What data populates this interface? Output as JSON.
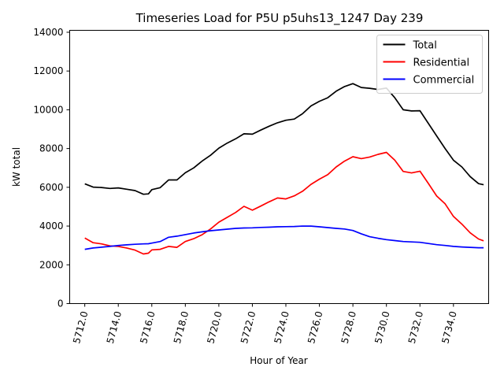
{
  "chart_data": {
    "type": "line",
    "title": "Timeseries Load for P5U p5uhs13_1247  Day 239",
    "xlabel": "Hour of Year",
    "ylabel": "kW total",
    "xlim": [
      5711.1,
      5736.1
    ],
    "ylim": [
      0,
      14100
    ],
    "grid": false,
    "legend_position": "top-right",
    "x_ticks": [
      5712,
      5714,
      5716,
      5718,
      5720,
      5722,
      5724,
      5726,
      5728,
      5730,
      5732,
      5734
    ],
    "x_tick_labels": [
      "5712.0",
      "5714.0",
      "5716.0",
      "5718.0",
      "5720.0",
      "5722.0",
      "5724.0",
      "5726.0",
      "5728.0",
      "5730.0",
      "5732.0",
      "5734.0"
    ],
    "y_ticks": [
      0,
      2000,
      4000,
      6000,
      8000,
      10000,
      12000,
      14000
    ],
    "y_tick_labels": [
      "0",
      "2000",
      "4000",
      "6000",
      "8000",
      "10000",
      "12000",
      "14000"
    ],
    "series": [
      {
        "name": "Total",
        "color": "#000000",
        "points": [
          [
            5712.0,
            6180
          ],
          [
            5712.5,
            6010
          ],
          [
            5713.0,
            5990
          ],
          [
            5713.5,
            5940
          ],
          [
            5714.0,
            5970
          ],
          [
            5714.5,
            5900
          ],
          [
            5715.0,
            5830
          ],
          [
            5715.5,
            5640
          ],
          [
            5715.8,
            5660
          ],
          [
            5716.0,
            5880
          ],
          [
            5716.5,
            5980
          ],
          [
            5717.0,
            6380
          ],
          [
            5717.5,
            6380
          ],
          [
            5718.0,
            6750
          ],
          [
            5718.5,
            7000
          ],
          [
            5719.0,
            7350
          ],
          [
            5719.5,
            7650
          ],
          [
            5720.0,
            8020
          ],
          [
            5720.5,
            8280
          ],
          [
            5721.0,
            8500
          ],
          [
            5721.5,
            8760
          ],
          [
            5722.0,
            8740
          ],
          [
            5722.5,
            8950
          ],
          [
            5723.0,
            9150
          ],
          [
            5723.5,
            9330
          ],
          [
            5724.0,
            9460
          ],
          [
            5724.5,
            9520
          ],
          [
            5725.0,
            9800
          ],
          [
            5725.5,
            10200
          ],
          [
            5726.0,
            10440
          ],
          [
            5726.5,
            10620
          ],
          [
            5727.0,
            10960
          ],
          [
            5727.5,
            11200
          ],
          [
            5728.0,
            11350
          ],
          [
            5728.5,
            11150
          ],
          [
            5729.0,
            11110
          ],
          [
            5729.5,
            11050
          ],
          [
            5730.0,
            11120
          ],
          [
            5730.5,
            10620
          ],
          [
            5731.0,
            10000
          ],
          [
            5731.5,
            9940
          ],
          [
            5732.0,
            9950
          ],
          [
            5732.5,
            9300
          ],
          [
            5733.0,
            8650
          ],
          [
            5733.5,
            8000
          ],
          [
            5734.0,
            7400
          ],
          [
            5734.5,
            7050
          ],
          [
            5735.0,
            6550
          ],
          [
            5735.5,
            6190
          ],
          [
            5735.8,
            6130
          ]
        ]
      },
      {
        "name": "Residential",
        "color": "#ff0000",
        "points": [
          [
            5712.0,
            3380
          ],
          [
            5712.5,
            3140
          ],
          [
            5713.0,
            3080
          ],
          [
            5713.5,
            2980
          ],
          [
            5714.0,
            2950
          ],
          [
            5714.5,
            2870
          ],
          [
            5715.0,
            2760
          ],
          [
            5715.5,
            2560
          ],
          [
            5715.8,
            2600
          ],
          [
            5716.0,
            2770
          ],
          [
            5716.5,
            2800
          ],
          [
            5717.0,
            2950
          ],
          [
            5717.5,
            2900
          ],
          [
            5718.0,
            3200
          ],
          [
            5718.5,
            3350
          ],
          [
            5719.0,
            3550
          ],
          [
            5719.5,
            3850
          ],
          [
            5720.0,
            4200
          ],
          [
            5720.5,
            4450
          ],
          [
            5721.0,
            4700
          ],
          [
            5721.5,
            5020
          ],
          [
            5722.0,
            4820
          ],
          [
            5722.5,
            5030
          ],
          [
            5723.0,
            5250
          ],
          [
            5723.5,
            5450
          ],
          [
            5724.0,
            5400
          ],
          [
            5724.5,
            5560
          ],
          [
            5725.0,
            5800
          ],
          [
            5725.5,
            6150
          ],
          [
            5726.0,
            6420
          ],
          [
            5726.5,
            6650
          ],
          [
            5727.0,
            7050
          ],
          [
            5727.5,
            7350
          ],
          [
            5728.0,
            7580
          ],
          [
            5728.5,
            7480
          ],
          [
            5729.0,
            7560
          ],
          [
            5729.5,
            7700
          ],
          [
            5730.0,
            7800
          ],
          [
            5730.5,
            7400
          ],
          [
            5731.0,
            6820
          ],
          [
            5731.5,
            6740
          ],
          [
            5732.0,
            6830
          ],
          [
            5732.5,
            6200
          ],
          [
            5733.0,
            5550
          ],
          [
            5733.5,
            5150
          ],
          [
            5734.0,
            4500
          ],
          [
            5734.5,
            4100
          ],
          [
            5735.0,
            3650
          ],
          [
            5735.5,
            3330
          ],
          [
            5735.8,
            3240
          ]
        ]
      },
      {
        "name": "Commercial",
        "color": "#0000ff",
        "points": [
          [
            5712.0,
            2800
          ],
          [
            5712.5,
            2870
          ],
          [
            5713.0,
            2910
          ],
          [
            5713.5,
            2950
          ],
          [
            5714.0,
            3000
          ],
          [
            5714.5,
            3030
          ],
          [
            5715.0,
            3060
          ],
          [
            5715.5,
            3080
          ],
          [
            5715.8,
            3090
          ],
          [
            5716.0,
            3120
          ],
          [
            5716.5,
            3200
          ],
          [
            5717.0,
            3420
          ],
          [
            5717.5,
            3480
          ],
          [
            5718.0,
            3560
          ],
          [
            5718.5,
            3640
          ],
          [
            5719.0,
            3700
          ],
          [
            5719.5,
            3760
          ],
          [
            5720.0,
            3800
          ],
          [
            5720.5,
            3840
          ],
          [
            5721.0,
            3880
          ],
          [
            5721.5,
            3900
          ],
          [
            5722.0,
            3910
          ],
          [
            5722.5,
            3930
          ],
          [
            5723.0,
            3940
          ],
          [
            5723.5,
            3960
          ],
          [
            5724.0,
            3970
          ],
          [
            5724.5,
            3980
          ],
          [
            5725.0,
            4000
          ],
          [
            5725.5,
            4000
          ],
          [
            5726.0,
            3960
          ],
          [
            5726.5,
            3920
          ],
          [
            5727.0,
            3880
          ],
          [
            5727.5,
            3850
          ],
          [
            5728.0,
            3770
          ],
          [
            5728.5,
            3600
          ],
          [
            5729.0,
            3450
          ],
          [
            5729.5,
            3370
          ],
          [
            5730.0,
            3300
          ],
          [
            5730.5,
            3250
          ],
          [
            5731.0,
            3200
          ],
          [
            5731.5,
            3180
          ],
          [
            5732.0,
            3160
          ],
          [
            5732.5,
            3100
          ],
          [
            5733.0,
            3040
          ],
          [
            5733.5,
            3000
          ],
          [
            5734.0,
            2950
          ],
          [
            5734.5,
            2920
          ],
          [
            5735.0,
            2900
          ],
          [
            5735.5,
            2880
          ],
          [
            5735.8,
            2880
          ]
        ]
      }
    ]
  }
}
